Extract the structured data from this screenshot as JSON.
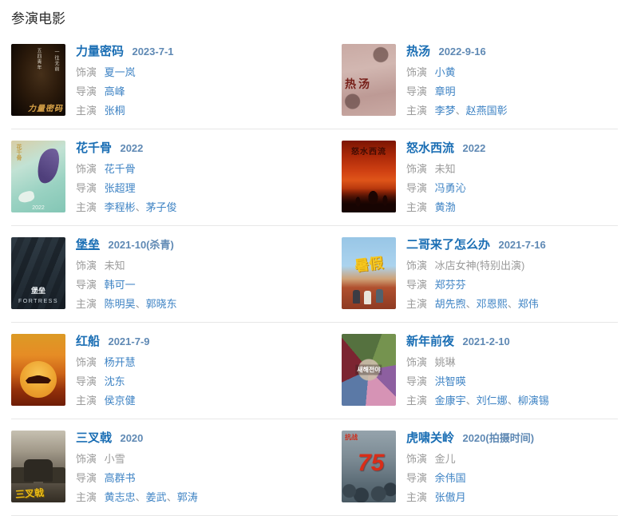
{
  "page": {
    "heading": "参演电影"
  },
  "ui": {
    "labels": {
      "role": "饰演",
      "director": "导演",
      "stars": "主演"
    },
    "separator": "、",
    "colors": {
      "title_link": "#1a6eb4",
      "date": "#5f89b4",
      "link": "#3e83c4",
      "label": "#9a9a9a",
      "divider": "#e7e7e7",
      "background": "#ffffff"
    }
  },
  "movies": [
    {
      "title": "力量密码",
      "date": "2023-7-1",
      "role": "夏一岚",
      "director": "高峰",
      "stars": [
        "张桐"
      ],
      "poster": {
        "side2": "五四青年",
        "side": "一往无前",
        "main": "力量密码"
      }
    },
    {
      "title": "热汤",
      "date": "2022-9-16",
      "role": "小黄",
      "director": "章明",
      "stars": [
        "李梦",
        "赵燕国彰"
      ],
      "poster": {
        "main": "热汤"
      }
    },
    {
      "title": "花千骨",
      "date": "2022",
      "role": "花千骨",
      "director": "张超理",
      "stars": [
        "李程彬",
        "茅子俊"
      ],
      "poster": {
        "side": "花千骨",
        "main": "2022"
      }
    },
    {
      "title": "怒水西流",
      "date": "2022",
      "role": "未知",
      "director": "冯勇沁",
      "stars": [
        "黄渤"
      ],
      "poster": {
        "main": "怒水西流"
      }
    },
    {
      "title": "堡垒",
      "date": "2021-10(杀青)",
      "role": "未知",
      "director": "韩可一",
      "stars": [
        "陈明昊",
        "郭晓东"
      ],
      "poster": {
        "sub": "堡垒",
        "main": "FORTRESS"
      }
    },
    {
      "title": "二哥来了怎么办",
      "date": "2021-7-16",
      "role": "冰店女神(特别出演)",
      "director": "郑芬芬",
      "stars": [
        "胡先煦",
        "邓恩熙",
        "郑伟"
      ],
      "poster": {
        "main": "暑假"
      }
    },
    {
      "title": "红船",
      "date": "2021-7-9",
      "role": "杨开慧",
      "director": "沈东",
      "stars": [
        "侯京健"
      ],
      "poster": {}
    },
    {
      "title": "新年前夜",
      "date": "2021-2-10",
      "role": "姚琳",
      "director": "洪智暎",
      "stars": [
        "金康宇",
        "刘仁娜",
        "柳演锡"
      ],
      "poster": {
        "main": "새해전야"
      }
    },
    {
      "title": "三叉戟",
      "date": "2020",
      "role": "小雪",
      "director": "高群书",
      "stars": [
        "黄志忠",
        "姜武",
        "郭涛"
      ],
      "poster": {
        "main": "三叉戟"
      }
    },
    {
      "title": "虎啸关岭",
      "date": "2020(拍摄时间)",
      "role": "金儿",
      "director": "余伟国",
      "stars": [
        "张傲月"
      ],
      "poster": {
        "sub": "抗战",
        "main": "75"
      }
    }
  ]
}
